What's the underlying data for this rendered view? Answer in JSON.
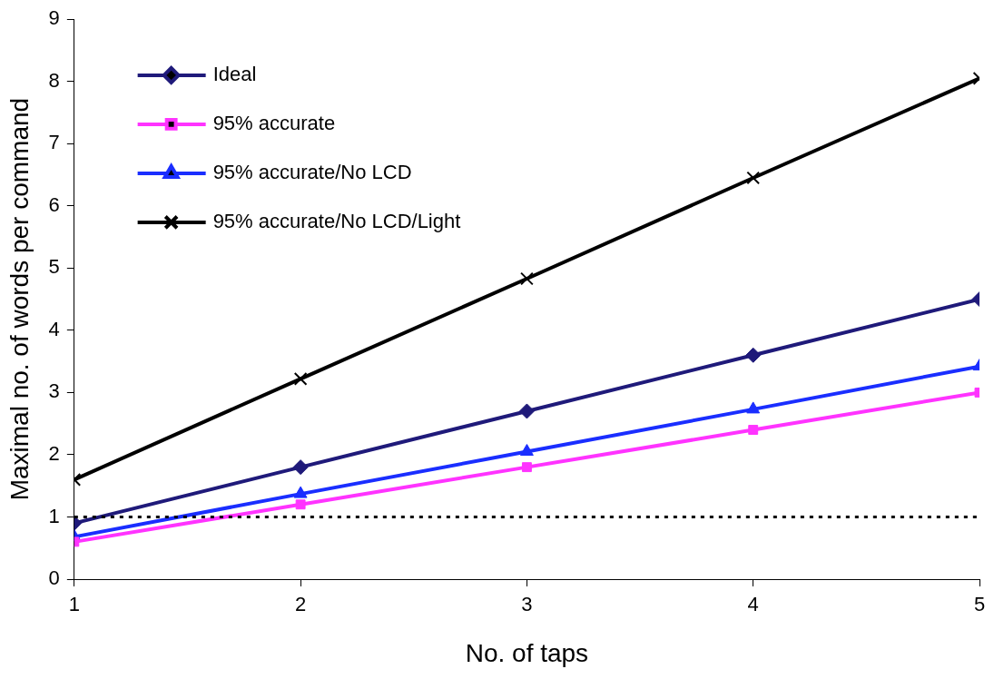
{
  "chart_data": {
    "type": "line",
    "xlabel": "No. of taps",
    "ylabel": "Maximal no. of words per command",
    "x": [
      1,
      2,
      3,
      4,
      5
    ],
    "xlim": [
      1,
      5
    ],
    "xticks": [
      1,
      2,
      3,
      4,
      5
    ],
    "ylim": [
      0,
      9
    ],
    "yticks": [
      0,
      1,
      2,
      3,
      4,
      5,
      6,
      7,
      8,
      9
    ],
    "legend": "top left",
    "line_style": "solid",
    "series": [
      {
        "name": "Ideal",
        "color": "#1f1a7a",
        "marker": "diamond",
        "values": [
          0.9,
          1.8,
          2.7,
          3.6,
          4.5
        ]
      },
      {
        "name": "95% accurate",
        "color": "#ff33ff",
        "marker": "square",
        "values": [
          0.6,
          1.2,
          1.8,
          2.4,
          3.0
        ]
      },
      {
        "name": "95% accurate/No LCD",
        "color": "#1a2eff",
        "marker": "triangle",
        "values": [
          0.68,
          1.37,
          2.05,
          2.73,
          3.42
        ]
      },
      {
        "name": "95% accurate/No LCD/Light",
        "color": "#000000",
        "marker": "cross",
        "values": [
          1.6,
          3.22,
          4.83,
          6.45,
          8.05
        ]
      }
    ],
    "ref_lines": [
      {
        "axis": "y",
        "value": 1,
        "color": "#000000",
        "line_style": "dotted"
      }
    ]
  }
}
